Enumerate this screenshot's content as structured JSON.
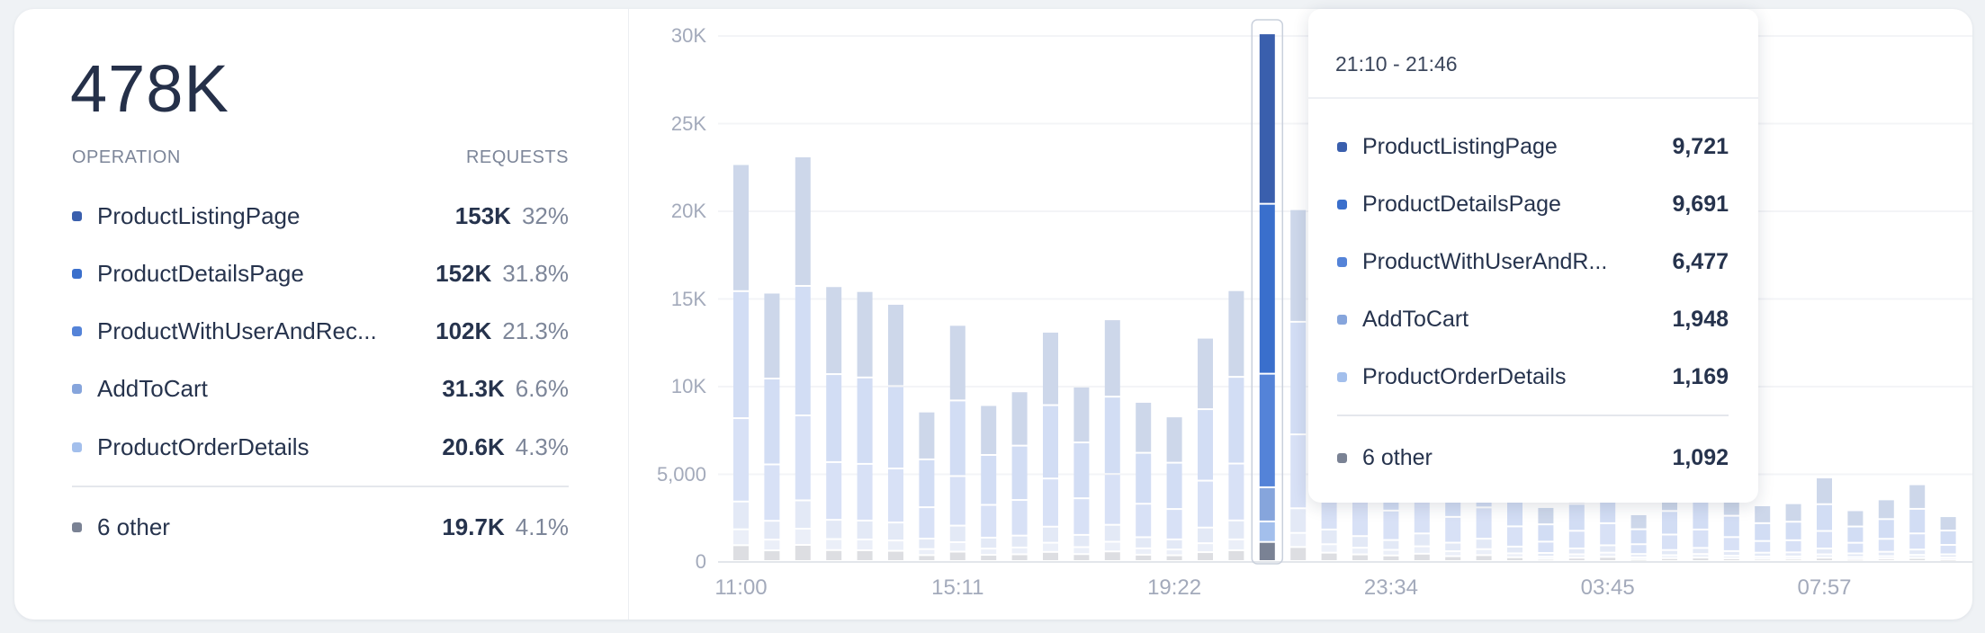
{
  "summary": {
    "total": "478K",
    "col_operation": "OPERATION",
    "col_requests": "REQUESTS",
    "rows": [
      {
        "name": "ProductListingPage",
        "value": "153K",
        "pct": "32%",
        "color": "#3a5fad"
      },
      {
        "name": "ProductDetailsPage",
        "value": "152K",
        "pct": "31.8%",
        "color": "#3a6fcc"
      },
      {
        "name": "ProductWithUserAndRec...",
        "value": "102K",
        "pct": "21.3%",
        "color": "#5483d8"
      },
      {
        "name": "AddToCart",
        "value": "31.3K",
        "pct": "6.6%",
        "color": "#86a5dc"
      },
      {
        "name": "ProductOrderDetails",
        "value": "20.6K",
        "pct": "4.3%",
        "color": "#a3bfec"
      }
    ],
    "other": {
      "name": "6 other",
      "value": "19.7K",
      "pct": "4.1%",
      "color": "#7a8294"
    }
  },
  "tooltip": {
    "title": "21:10 - 21:46",
    "rows": [
      {
        "name": "ProductListingPage",
        "value": "9,721",
        "color": "#3a5fad"
      },
      {
        "name": "ProductDetailsPage",
        "value": "9,691",
        "color": "#3a6fcc"
      },
      {
        "name": "ProductWithUserAndR...",
        "value": "6,477",
        "color": "#5483d8"
      },
      {
        "name": "AddToCart",
        "value": "1,948",
        "color": "#86a5dc"
      },
      {
        "name": "ProductOrderDetails",
        "value": "1,169",
        "color": "#a3bfec"
      }
    ],
    "other": {
      "name": "6 other",
      "value": "1,092",
      "color": "#7a8294"
    }
  },
  "chart_data": {
    "type": "bar",
    "stacked": true,
    "ylim": [
      0,
      30000
    ],
    "y_ticks": [
      "0",
      "5,000",
      "10K",
      "15K",
      "20K",
      "25K",
      "30K"
    ],
    "x_ticks": [
      "11:00",
      "15:11",
      "19:22",
      "23:34",
      "03:45",
      "07:57"
    ],
    "x_tick_every": 7,
    "highlighted_index": 17,
    "series_names": [
      "ProductListingPage",
      "ProductDetailsPage",
      "ProductWithUserAndRec...",
      "AddToCart",
      "ProductOrderDetails",
      "6 other"
    ],
    "series_colors": [
      "#3a5fad",
      "#3a6fcc",
      "#5483d8",
      "#86a5dc",
      "#a3bfec",
      "#7a8294"
    ],
    "faded_colors": [
      "#cdd7ea",
      "#d2ddf4",
      "#d8e1f6",
      "#e3e9f6",
      "#ebeff8",
      "#dddee2"
    ],
    "series_share": [
      0.32,
      0.32,
      0.21,
      0.07,
      0.04,
      0.04
    ],
    "totals": [
      22640,
      15310,
      23080,
      15680,
      15400,
      14670,
      8530,
      13470,
      8900,
      9680,
      13080,
      9950,
      13790,
      9080,
      8250,
      12740,
      15450,
      30098,
      20070,
      12000,
      9500,
      8000,
      10500,
      7000,
      8500,
      5500,
      3080,
      4800,
      6000,
      2670,
      4200,
      5000,
      3800,
      3180,
      3300,
      4770,
      2900,
      3520,
      4380,
      2560
    ],
    "highlighted_values": [
      9721,
      9691,
      6477,
      1948,
      1169,
      1092
    ]
  }
}
